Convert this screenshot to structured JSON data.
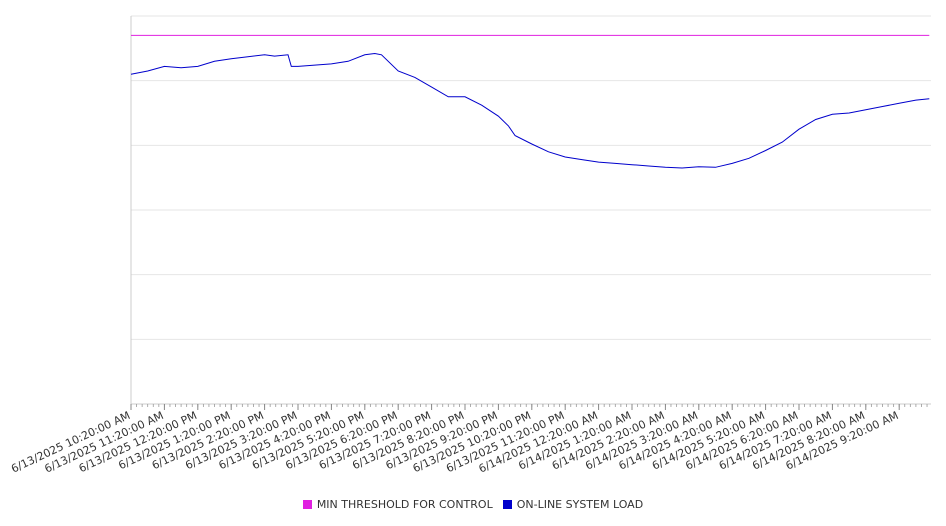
{
  "chart_data": {
    "type": "line",
    "title": "",
    "xlabel": "",
    "ylabel": "",
    "ylim": [
      0,
      6
    ],
    "grid": true,
    "legend_position": "bottom-center",
    "x_tick_labels": [
      "6/13/2025 10:20:00 AM",
      "6/13/2025 11:20:00 AM",
      "6/13/2025 12:20:00 PM",
      "6/13/2025 1:20:00 PM",
      "6/13/2025 2:20:00 PM",
      "6/13/2025 3:20:00 PM",
      "6/13/2025 4:20:00 PM",
      "6/13/2025 5:20:00 PM",
      "6/13/2025 6:20:00 PM",
      "6/13/2025 7:20:00 PM",
      "6/13/2025 8:20:00 PM",
      "6/13/2025 9:20:00 PM",
      "6/13/2025 10:20:00 PM",
      "6/13/2025 11:20:00 PM",
      "6/14/2025 12:20:00 AM",
      "6/14/2025 1:20:00 AM",
      "6/14/2025 2:20:00 AM",
      "6/14/2025 3:20:00 AM",
      "6/14/2025 4:20:00 AM",
      "6/14/2025 5:20:00 AM",
      "6/14/2025 6:20:00 AM",
      "6/14/2025 7:20:00 AM",
      "6/14/2025 8:20:00 AM",
      "6/14/2025 9:20:00 AM"
    ],
    "series": [
      {
        "name": "MIN THRESHOLD FOR CONTROL",
        "color": "#e020e0",
        "x": [
          0,
          23.9
        ],
        "values": [
          5.7,
          5.7
        ]
      },
      {
        "name": "ON-LINE SYSTEM LOAD",
        "color": "#0000cc",
        "x": [
          0,
          0.5,
          1.0,
          1.5,
          2.0,
          2.5,
          3.0,
          3.5,
          4.0,
          4.3,
          4.7,
          4.8,
          5.0,
          5.5,
          6.0,
          6.5,
          7.0,
          7.3,
          7.5,
          8.0,
          8.5,
          9.0,
          9.5,
          10.0,
          10.5,
          11.0,
          11.3,
          11.5,
          12.0,
          12.5,
          13.0,
          13.5,
          14.0,
          14.5,
          15.0,
          15.5,
          16.0,
          16.5,
          17.0,
          17.5,
          18.0,
          18.5,
          19.0,
          19.5,
          20.0,
          20.5,
          21.0,
          21.5,
          22.0,
          22.5,
          23.0,
          23.5,
          23.9
        ],
        "values": [
          5.1,
          5.15,
          5.22,
          5.2,
          5.22,
          5.3,
          5.34,
          5.37,
          5.4,
          5.38,
          5.4,
          5.22,
          5.22,
          5.24,
          5.26,
          5.3,
          5.4,
          5.42,
          5.4,
          5.15,
          5.05,
          4.9,
          4.75,
          4.75,
          4.62,
          4.45,
          4.3,
          4.15,
          4.02,
          3.9,
          3.82,
          3.78,
          3.74,
          3.72,
          3.7,
          3.68,
          3.66,
          3.65,
          3.67,
          3.66,
          3.72,
          3.8,
          3.92,
          4.05,
          4.25,
          4.4,
          4.48,
          4.5,
          4.55,
          4.6,
          4.65,
          4.7,
          4.72
        ]
      }
    ]
  }
}
